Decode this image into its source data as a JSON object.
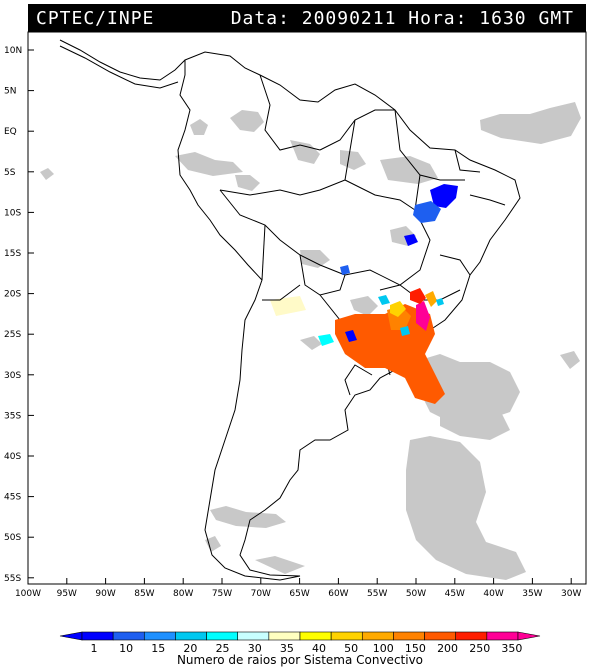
{
  "header": {
    "source": "CPTEC/INPE",
    "datetime": "Data: 20090211 Hora: 1630 GMT"
  },
  "map": {
    "lat_labels": [
      "10N",
      "5N",
      "EQ",
      "5S",
      "10S",
      "15S",
      "20S",
      "25S",
      "30S",
      "35S",
      "40S",
      "45S",
      "50S",
      "55S"
    ],
    "lon_labels": [
      "100W",
      "95W",
      "90W",
      "85W",
      "80W",
      "75W",
      "70W",
      "65W",
      "60W",
      "55W",
      "50W",
      "45W",
      "40W",
      "35W",
      "30W"
    ],
    "lat_range": [
      10,
      -55
    ],
    "lon_range": [
      -100,
      -28
    ],
    "cloud_color": "#c8c8c8"
  },
  "legend": {
    "values": [
      "1",
      "10",
      "15",
      "20",
      "25",
      "30",
      "35",
      "40",
      "50",
      "100",
      "150",
      "200",
      "250",
      "350"
    ],
    "colors": [
      "#0000ff",
      "#1e5ff0",
      "#1e90ff",
      "#00c8f0",
      "#00ffff",
      "#c8ffff",
      "#ffffc0",
      "#ffff00",
      "#ffd200",
      "#ffaa00",
      "#ff8200",
      "#ff5a00",
      "#ff1e00",
      "#ff0096"
    ],
    "title": "Numero de raios por Sistema Convectivo"
  }
}
